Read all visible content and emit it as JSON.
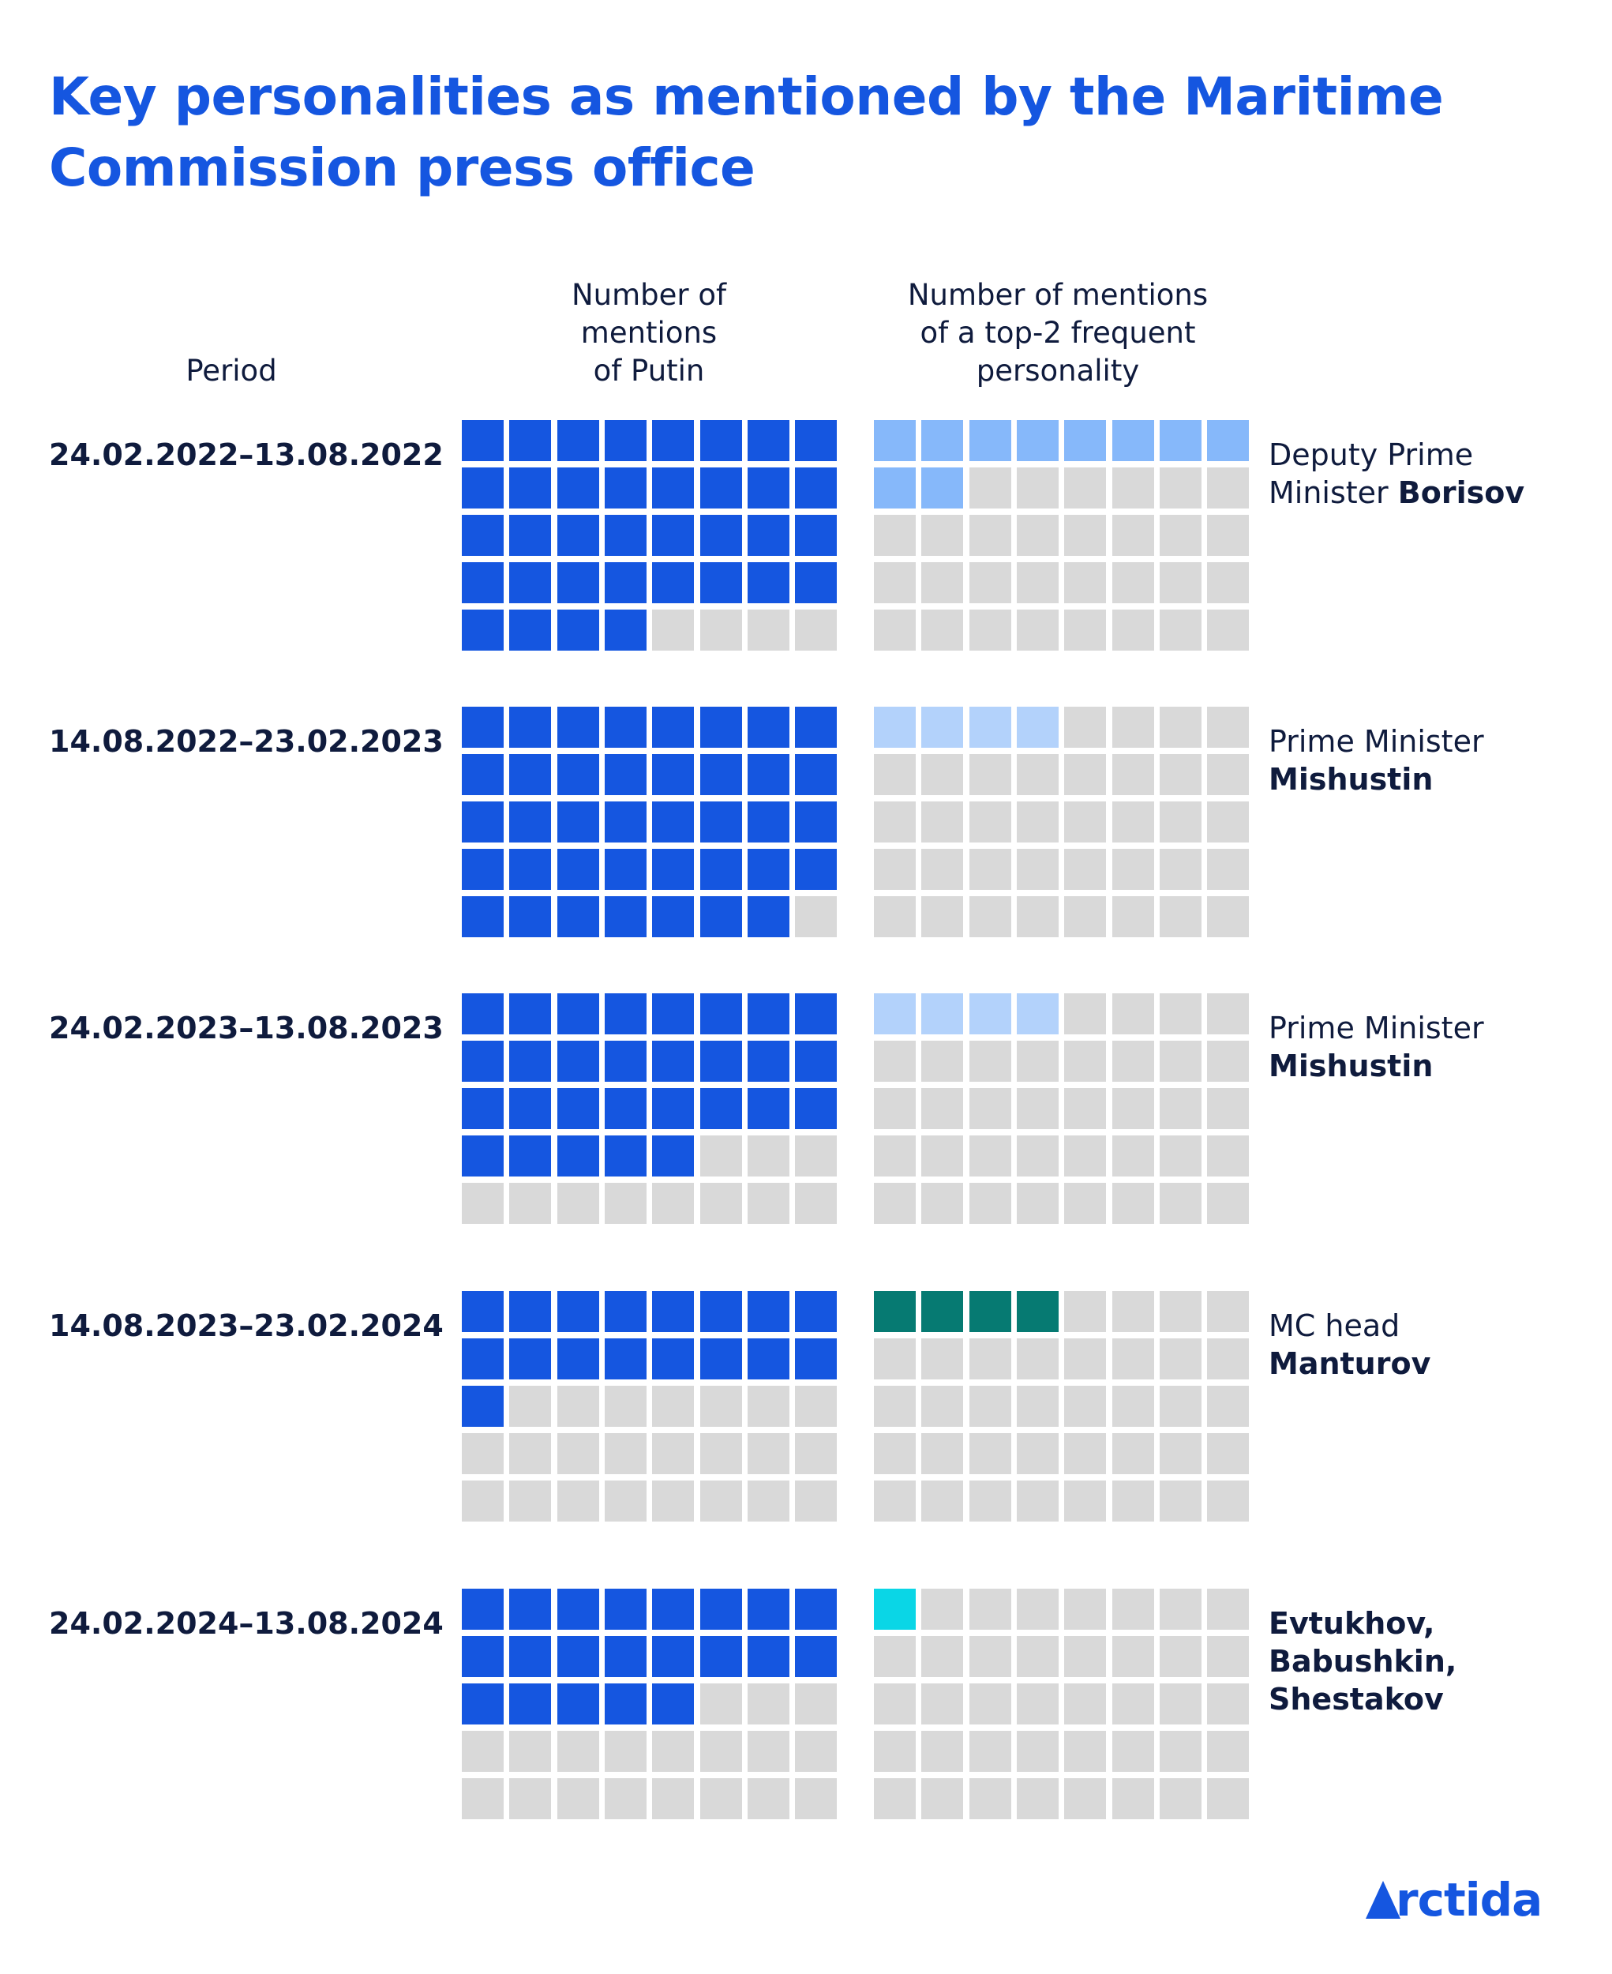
{
  "title": "Key personalities as mentioned by the Maritime Commission press office",
  "headers": {
    "period": "Period",
    "putin": [
      "Number of",
      "mentions",
      "of Putin"
    ],
    "other": [
      "Number of mentions",
      "of a top-2 frequent",
      "personality"
    ]
  },
  "logo": "rctida",
  "colors": {
    "putin": "#1556e0",
    "empty": "#d9d9d9"
  },
  "chart_data": {
    "type": "waffle",
    "grid": {
      "rows": 5,
      "cols": 8
    },
    "categories": [
      "24.02.2022–13.08.2022",
      "14.08.2022–23.02.2023",
      "24.02.2023–13.08.2023",
      "14.08.2023–23.02.2024",
      "24.02.2024–13.08.2024"
    ],
    "series": [
      {
        "name": "Number of mentions of Putin",
        "values": [
          36,
          39,
          29,
          17,
          21
        ]
      },
      {
        "name": "Number of mentions of a top-2 frequent personality",
        "values": [
          10,
          4,
          4,
          4,
          1
        ]
      }
    ],
    "rows": [
      {
        "period": "24.02.2022–13.08.2022",
        "putin": 36,
        "other": 10,
        "other_color": "#86b8fa",
        "person_prefix": "Deputy Prime",
        "person_line2_prefix": "Minister ",
        "person_bold": "Borisov",
        "person_bold_lines": []
      },
      {
        "period": "14.08.2022–23.02.2023",
        "putin": 39,
        "other": 4,
        "other_color": "#b3d2fb",
        "person_prefix": "Prime Minister",
        "person_line2_prefix": "",
        "person_bold": "Mishustin",
        "person_bold_lines": []
      },
      {
        "period": "24.02.2023–13.08.2023",
        "putin": 29,
        "other": 4,
        "other_color": "#b3d2fb",
        "person_prefix": "Prime Minister",
        "person_line2_prefix": "",
        "person_bold": "Mishustin",
        "person_bold_lines": []
      },
      {
        "period": "14.08.2023–23.02.2024",
        "putin": 17,
        "other": 4,
        "other_color": "#067a72",
        "person_prefix": "MC head",
        "person_line2_prefix": "",
        "person_bold": "Manturov",
        "person_bold_lines": []
      },
      {
        "period": "24.02.2024–13.08.2024",
        "putin": 21,
        "other": 1,
        "other_color": "#0ad6e6",
        "person_prefix": "",
        "person_line2_prefix": "",
        "person_bold": "",
        "person_bold_lines": [
          "Evtukhov,",
          "Babushkin,",
          "Shestakov"
        ]
      }
    ]
  }
}
